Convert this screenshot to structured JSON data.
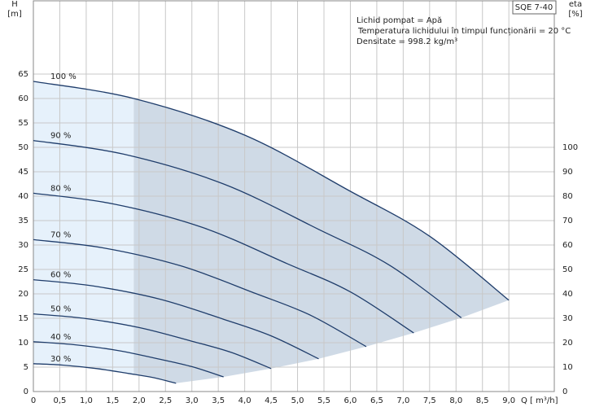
{
  "chart_data": {
    "type": "line",
    "title": "SQE 7-40",
    "info": [
      "Lichid pompat = Apă",
      "Temperatura lichidului în timpul funcționării = 20  °C",
      "Densitate = 998.2  kg/m³"
    ],
    "y_label": [
      "H",
      "[m]"
    ],
    "y2_label": [
      "eta",
      "[%]"
    ],
    "x_label": "Q [ m³/h]",
    "xlim": [
      0,
      9.86
    ],
    "ylim": [
      0,
      80
    ],
    "y2lim": [
      0,
      160
    ],
    "xticks": [
      0,
      {
        "value": 0.5,
        "label": "0,5"
      },
      {
        "value": 1,
        "label": "1,0"
      },
      {
        "value": 1.5,
        "label": "1,5"
      },
      {
        "value": 2,
        "label": "2,0"
      },
      {
        "value": 2.5,
        "label": "2,5"
      },
      {
        "value": 3,
        "label": "3,0"
      },
      {
        "value": 3.5,
        "label": "3,5"
      },
      {
        "value": 4,
        "label": "4,0"
      },
      {
        "value": 4.5,
        "label": "4,5"
      },
      {
        "value": 5,
        "label": "5,0"
      },
      {
        "value": 5.5,
        "label": "5,5"
      },
      {
        "value": 6,
        "label": "6,0"
      },
      {
        "value": 6.5,
        "label": "6,5"
      },
      {
        "value": 7,
        "label": "7,0"
      },
      {
        "value": 7.5,
        "label": "7,5"
      },
      {
        "value": 8,
        "label": "8,0"
      },
      {
        "value": 8.5,
        "label": "8,5"
      },
      {
        "value": 9,
        "label": "9,0"
      }
    ],
    "yticks": [
      0,
      5,
      10,
      15,
      20,
      25,
      30,
      35,
      40,
      45,
      50,
      55,
      60,
      65
    ],
    "y2ticks": [
      0,
      10,
      20,
      30,
      40,
      50,
      60,
      70,
      80,
      90,
      100
    ],
    "grid": true,
    "series": [
      {
        "name": "100 %",
        "color": "#1f3d6b",
        "x": [
          0,
          1.9,
          4,
          6,
          7.5,
          9
        ],
        "values": [
          63.5,
          60,
          52.5,
          41,
          31.8,
          18.7
        ]
      },
      {
        "name": "90 %",
        "color": "#1f3d6b",
        "x": [
          0,
          1.71,
          3.6,
          5.4,
          6.75,
          8.1
        ],
        "values": [
          51.4,
          48.6,
          42.5,
          33.2,
          25.8,
          15.1
        ]
      },
      {
        "name": "80 %",
        "color": "#1f3d6b",
        "x": [
          0,
          1.52,
          3.2,
          4.8,
          6.0,
          7.2
        ],
        "values": [
          40.6,
          38.4,
          33.6,
          26.2,
          20.4,
          12.0
        ]
      },
      {
        "name": "70 %",
        "color": "#1f3d6b",
        "x": [
          0,
          1.33,
          2.8,
          4.2,
          5.25,
          6.3
        ],
        "values": [
          31.1,
          29.4,
          25.7,
          20.1,
          15.6,
          9.2
        ]
      },
      {
        "name": "60 %",
        "color": "#1f3d6b",
        "x": [
          0,
          1.14,
          2.4,
          3.6,
          4.5,
          5.4
        ],
        "values": [
          22.9,
          21.6,
          18.9,
          14.8,
          11.4,
          6.7
        ]
      },
      {
        "name": "50 %",
        "color": "#1f3d6b",
        "x": [
          0,
          0.95,
          2.0,
          3.0,
          3.75,
          4.5
        ],
        "values": [
          15.9,
          15.0,
          13.1,
          10.3,
          8.0,
          4.7
        ]
      },
      {
        "name": "40 %",
        "color": "#1f3d6b",
        "x": [
          0,
          0.76,
          1.6,
          2.4,
          3.0,
          3.6
        ],
        "values": [
          10.2,
          9.6,
          8.4,
          6.6,
          5.1,
          3.0
        ]
      },
      {
        "name": "30 %",
        "color": "#1f3d6b",
        "x": [
          0,
          0.57,
          1.2,
          1.8,
          2.25,
          2.7
        ],
        "values": [
          5.7,
          5.4,
          4.7,
          3.7,
          2.9,
          1.7
        ]
      }
    ]
  }
}
